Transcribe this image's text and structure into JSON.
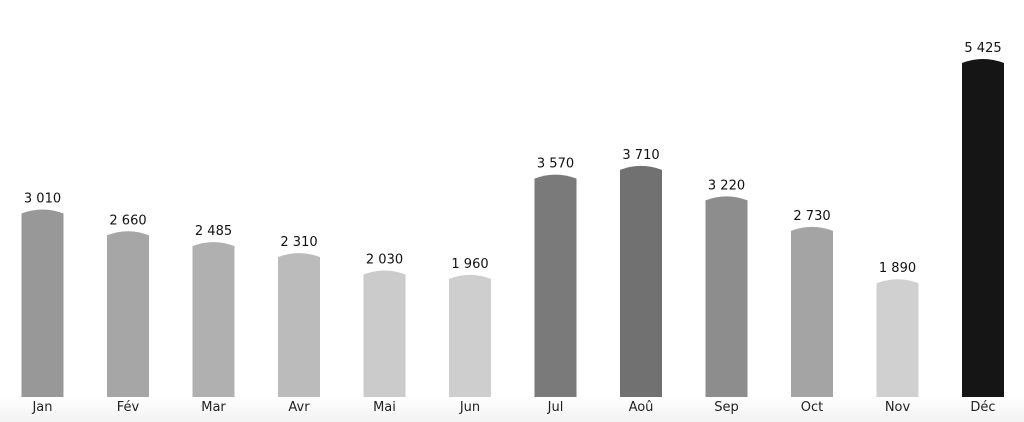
{
  "chart_data": {
    "type": "bar",
    "title": "",
    "xlabel": "",
    "ylabel": "",
    "ylim": [
      0,
      5425
    ],
    "grid": false,
    "legend": "none",
    "categories": [
      "Jan",
      "Fév",
      "Mar",
      "Avr",
      "Mai",
      "Jun",
      "Jul",
      "Aoû",
      "Sep",
      "Oct",
      "Nov",
      "Déc"
    ],
    "values": [
      3010,
      2660,
      2485,
      2310,
      2030,
      1960,
      3570,
      3710,
      3220,
      2730,
      1890,
      5425
    ],
    "value_labels": [
      "3 010",
      "2 660",
      "2 485",
      "2 310",
      "2 030",
      "1 960",
      "3 570",
      "3 710",
      "3 220",
      "2 730",
      "1 890",
      "5 425"
    ],
    "colors": [
      "#989898",
      "#a6a6a6",
      "#b0b0b0",
      "#bbbbbb",
      "#cbcbcb",
      "#cecece",
      "#7a7a7a",
      "#717171",
      "#8d8d8d",
      "#a4a4a4",
      "#d0d0d0",
      "#151515"
    ]
  }
}
